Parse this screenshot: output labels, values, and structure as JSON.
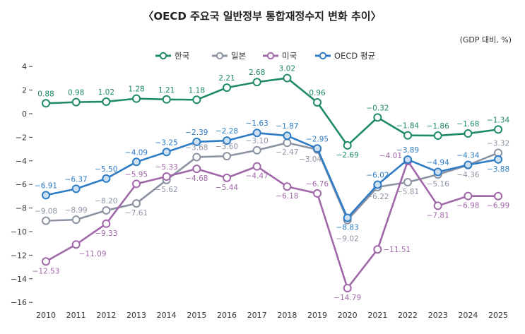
{
  "chart_data": {
    "type": "line",
    "title": "〈OECD 주요국 일반정부 통합재정수지 변화 추이〉",
    "unit": "(GDP 대비, %)",
    "xlabel": "",
    "ylabel": "",
    "ylim": [
      -16,
      4
    ],
    "yticks": [
      4,
      2,
      0,
      -2,
      -4,
      -6,
      -8,
      -10,
      -12,
      -14,
      -16
    ],
    "ytick_labels": [
      "4",
      "2",
      "0",
      "−2",
      "−4",
      "−6",
      "−8",
      "−10",
      "−12",
      "−14",
      "−16"
    ],
    "x": [
      "2010",
      "2011",
      "2012",
      "2013",
      "2014",
      "2015",
      "2016",
      "2017",
      "2018",
      "2019",
      "2020",
      "2021",
      "2022",
      "2023",
      "2024",
      "2025"
    ],
    "legend_position": "top-center",
    "grid": false,
    "series": [
      {
        "name": "한국",
        "color": "#1f8a68",
        "values": [
          0.88,
          0.98,
          1.02,
          1.28,
          1.21,
          1.18,
          2.21,
          2.68,
          3.02,
          0.96,
          -2.69,
          -0.32,
          -1.84,
          -1.86,
          -1.68,
          -1.34
        ]
      },
      {
        "name": "일본",
        "color": "#8b93a3",
        "values": [
          -9.08,
          -8.99,
          -8.2,
          -7.61,
          -5.62,
          -3.68,
          -3.6,
          -3.1,
          -2.47,
          -3.04,
          -9.02,
          -6.22,
          -5.81,
          -5.16,
          -4.36,
          -3.32
        ]
      },
      {
        "name": "미국",
        "color": "#a068a8",
        "values": [
          -12.53,
          -11.09,
          -9.33,
          -5.95,
          -5.33,
          -4.68,
          -5.44,
          -4.47,
          -6.18,
          -6.76,
          -14.79,
          -11.51,
          -4.01,
          -7.81,
          -6.98,
          -6.99
        ]
      },
      {
        "name": "OECD 평균",
        "color": "#2e7cc6",
        "values": [
          -6.91,
          -6.37,
          -5.5,
          -4.09,
          -3.25,
          -2.39,
          -2.28,
          -1.63,
          -1.87,
          -2.95,
          -8.83,
          -6.02,
          -3.89,
          -4.94,
          -4.34,
          -3.88
        ]
      }
    ]
  }
}
